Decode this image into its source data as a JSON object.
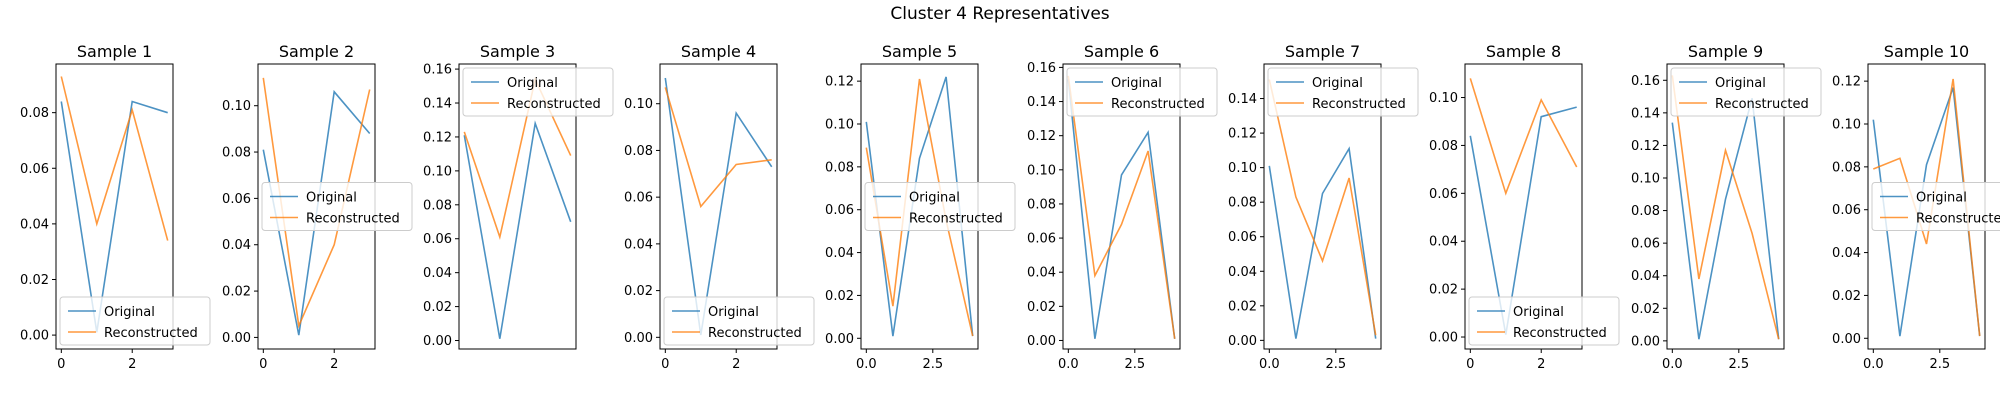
{
  "figure": {
    "title": "Cluster 4 Representatives"
  },
  "colors": {
    "original": "#1f77b4",
    "reconstructed": "#ff7f0e",
    "axes": "#000000"
  },
  "legend_labels": [
    "Original",
    "Reconstructed"
  ],
  "chart_data": [
    {
      "type": "line",
      "title": "Sample 1",
      "x": [
        0,
        1,
        2,
        3
      ],
      "xticks": [
        "0",
        "2"
      ],
      "xtick_values": [
        0,
        2
      ],
      "xlim": [
        -0.15,
        3.15
      ],
      "ylim": [
        -0.005,
        0.0975
      ],
      "yticks": [
        "0.00",
        "0.02",
        "0.04",
        "0.06",
        "0.08"
      ],
      "ytick_values": [
        0,
        0.02,
        0.04,
        0.06,
        0.08
      ],
      "legend": "lower left",
      "series": [
        {
          "name": "Original",
          "values": [
            0.084,
            0.001,
            0.084,
            0.08
          ]
        },
        {
          "name": "Reconstructed",
          "values": [
            0.093,
            0.04,
            0.081,
            0.034
          ]
        }
      ]
    },
    {
      "type": "line",
      "title": "Sample 2",
      "x": [
        0,
        1,
        2,
        3
      ],
      "xticks": [
        "0",
        "2"
      ],
      "xtick_values": [
        0,
        2
      ],
      "xlim": [
        -0.15,
        3.15
      ],
      "ylim": [
        -0.005,
        0.118
      ],
      "yticks": [
        "0.00",
        "0.02",
        "0.04",
        "0.06",
        "0.08",
        "0.10"
      ],
      "ytick_values": [
        0,
        0.02,
        0.04,
        0.06,
        0.08,
        0.1
      ],
      "legend": "center left",
      "series": [
        {
          "name": "Original",
          "values": [
            0.081,
            0.001,
            0.106,
            0.088
          ]
        },
        {
          "name": "Reconstructed",
          "values": [
            0.112,
            0.005,
            0.04,
            0.107
          ]
        }
      ]
    },
    {
      "type": "line",
      "title": "Sample 3",
      "x": [
        0,
        1,
        2,
        3
      ],
      "xticks": [],
      "xtick_values": [],
      "xlim": [
        -0.15,
        3.15
      ],
      "ylim": [
        -0.005,
        0.163
      ],
      "yticks": [
        "0.00",
        "0.02",
        "0.04",
        "0.06",
        "0.08",
        "0.10",
        "0.12",
        "0.14",
        "0.16"
      ],
      "ytick_values": [
        0,
        0.02,
        0.04,
        0.06,
        0.08,
        0.1,
        0.12,
        0.14,
        0.16
      ],
      "legend": "upper left",
      "series": [
        {
          "name": "Original",
          "values": [
            0.121,
            0.001,
            0.128,
            0.07
          ]
        },
        {
          "name": "Reconstructed",
          "values": [
            0.123,
            0.061,
            0.154,
            0.109
          ]
        }
      ]
    },
    {
      "type": "line",
      "title": "Sample 4",
      "x": [
        0,
        1,
        2,
        3
      ],
      "xticks": [
        "0",
        "2"
      ],
      "xtick_values": [
        0,
        2
      ],
      "xlim": [
        -0.15,
        3.15
      ],
      "ylim": [
        -0.005,
        0.117
      ],
      "yticks": [
        "0.00",
        "0.02",
        "0.04",
        "0.06",
        "0.08",
        "0.10"
      ],
      "ytick_values": [
        0,
        0.02,
        0.04,
        0.06,
        0.08,
        0.1
      ],
      "legend": "lower left",
      "series": [
        {
          "name": "Original",
          "values": [
            0.111,
            0.001,
            0.096,
            0.073
          ]
        },
        {
          "name": "Reconstructed",
          "values": [
            0.107,
            0.056,
            0.074,
            0.076
          ]
        }
      ]
    },
    {
      "type": "line",
      "title": "Sample 5",
      "x": [
        0,
        1,
        2,
        3,
        4
      ],
      "xticks": [
        "0.0",
        "2.5"
      ],
      "xtick_values": [
        0,
        2.5
      ],
      "xlim": [
        -0.2,
        4.2
      ],
      "ylim": [
        -0.005,
        0.128
      ],
      "yticks": [
        "0.00",
        "0.02",
        "0.04",
        "0.06",
        "0.08",
        "0.10",
        "0.12"
      ],
      "ytick_values": [
        0,
        0.02,
        0.04,
        0.06,
        0.08,
        0.1,
        0.12
      ],
      "legend": "center left",
      "series": [
        {
          "name": "Original",
          "values": [
            0.101,
            0.001,
            0.084,
            0.122,
            0.001
          ]
        },
        {
          "name": "Reconstructed",
          "values": [
            0.089,
            0.015,
            0.121,
            0.055,
            0.001
          ]
        }
      ]
    },
    {
      "type": "line",
      "title": "Sample 6",
      "x": [
        0,
        1,
        2,
        3,
        4
      ],
      "xticks": [
        "0.0",
        "2.5"
      ],
      "xtick_values": [
        0,
        2.5
      ],
      "xlim": [
        -0.2,
        4.2
      ],
      "ylim": [
        -0.005,
        0.162
      ],
      "yticks": [
        "0.00",
        "0.02",
        "0.04",
        "0.06",
        "0.08",
        "0.10",
        "0.12",
        "0.14",
        "0.16"
      ],
      "ytick_values": [
        0,
        0.02,
        0.04,
        0.06,
        0.08,
        0.1,
        0.12,
        0.14,
        0.16
      ],
      "legend": "upper right",
      "series": [
        {
          "name": "Original",
          "values": [
            0.153,
            0.001,
            0.097,
            0.122,
            0.001
          ]
        },
        {
          "name": "Reconstructed",
          "values": [
            0.155,
            0.038,
            0.068,
            0.111,
            0.001
          ]
        }
      ]
    },
    {
      "type": "line",
      "title": "Sample 7",
      "x": [
        0,
        1,
        2,
        3,
        4
      ],
      "xticks": [
        "0.0",
        "2.5"
      ],
      "xtick_values": [
        0,
        2.5
      ],
      "xlim": [
        -0.2,
        4.2
      ],
      "ylim": [
        -0.005,
        0.16
      ],
      "yticks": [
        "0.00",
        "0.02",
        "0.04",
        "0.06",
        "0.08",
        "0.10",
        "0.12",
        "0.14"
      ],
      "ytick_values": [
        0,
        0.02,
        0.04,
        0.06,
        0.08,
        0.1,
        0.12,
        0.14
      ],
      "legend": "upper right",
      "series": [
        {
          "name": "Original",
          "values": [
            0.101,
            0.001,
            0.085,
            0.111,
            0.001
          ]
        },
        {
          "name": "Reconstructed",
          "values": [
            0.151,
            0.083,
            0.046,
            0.094,
            0.003
          ]
        }
      ]
    },
    {
      "type": "line",
      "title": "Sample 8",
      "x": [
        0,
        1,
        2,
        3
      ],
      "xticks": [
        "0",
        "2"
      ],
      "xtick_values": [
        0,
        2
      ],
      "xlim": [
        -0.15,
        3.15
      ],
      "ylim": [
        -0.005,
        0.114
      ],
      "yticks": [
        "0.00",
        "0.02",
        "0.04",
        "0.06",
        "0.08",
        "0.10"
      ],
      "ytick_values": [
        0,
        0.02,
        0.04,
        0.06,
        0.08,
        0.1
      ],
      "legend": "lower left",
      "series": [
        {
          "name": "Original",
          "values": [
            0.084,
            0.001,
            0.092,
            0.096
          ]
        },
        {
          "name": "Reconstructed",
          "values": [
            0.108,
            0.06,
            0.099,
            0.071
          ]
        }
      ]
    },
    {
      "type": "line",
      "title": "Sample 9",
      "x": [
        0,
        1,
        2,
        3,
        4
      ],
      "xticks": [
        "0.0",
        "2.5"
      ],
      "xtick_values": [
        0,
        2.5
      ],
      "xlim": [
        -0.2,
        4.2
      ],
      "ylim": [
        -0.005,
        0.17
      ],
      "yticks": [
        "0.00",
        "0.02",
        "0.04",
        "0.06",
        "0.08",
        "0.10",
        "0.12",
        "0.14",
        "0.16"
      ],
      "ytick_values": [
        0,
        0.02,
        0.04,
        0.06,
        0.08,
        0.1,
        0.12,
        0.14,
        0.16
      ],
      "legend": "upper right",
      "series": [
        {
          "name": "Original",
          "values": [
            0.134,
            0.001,
            0.087,
            0.149,
            0.001
          ]
        },
        {
          "name": "Reconstructed",
          "values": [
            0.163,
            0.038,
            0.117,
            0.066,
            0.001
          ]
        }
      ]
    },
    {
      "type": "line",
      "title": "Sample 10",
      "x": [
        0,
        1,
        2,
        3,
        4
      ],
      "xticks": [
        "0.0",
        "2.5"
      ],
      "xtick_values": [
        0,
        2.5
      ],
      "xlim": [
        -0.2,
        4.2
      ],
      "ylim": [
        -0.005,
        0.128
      ],
      "yticks": [
        "0.00",
        "0.02",
        "0.04",
        "0.06",
        "0.08",
        "0.10",
        "0.12"
      ],
      "ytick_values": [
        0,
        0.02,
        0.04,
        0.06,
        0.08,
        0.1,
        0.12
      ],
      "legend": "center left",
      "series": [
        {
          "name": "Original",
          "values": [
            0.102,
            0.001,
            0.081,
            0.117,
            0.001
          ]
        },
        {
          "name": "Reconstructed",
          "values": [
            0.079,
            0.084,
            0.044,
            0.121,
            0.001
          ]
        }
      ]
    }
  ]
}
